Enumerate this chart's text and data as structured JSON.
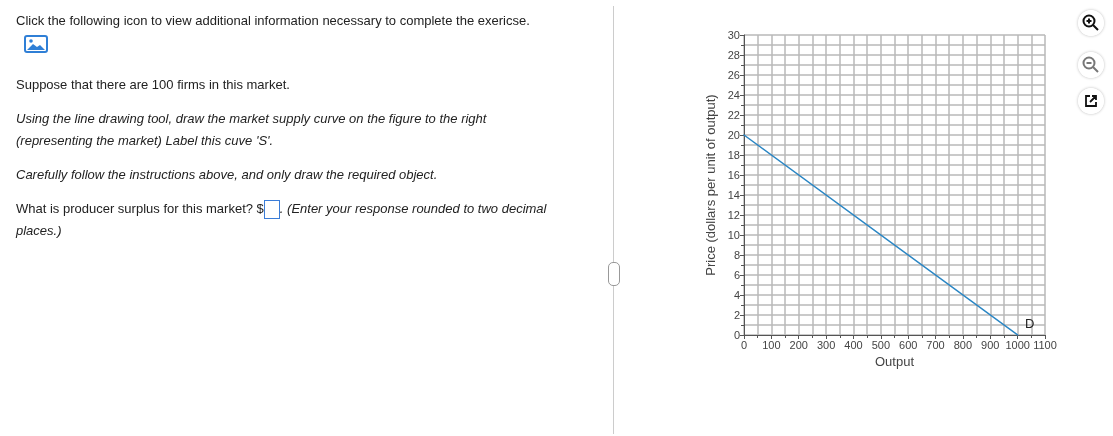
{
  "chart_data": {
    "type": "line",
    "xlabel": "Output",
    "ylabel": "Price (dollars per unit of output)",
    "annotations": [
      "Click the following icon to view additional information necessary to complete the exericse.",
      "Suppose that there are 100 firms in this market.",
      "Using the line drawing tool, draw the market supply curve on the figure to the right (representing the market)   Label this cuve 'S'.",
      "Carefully follow the instructions above, and only draw the required object.",
      "What is producer surplus for this market? $",
      ". (Enter your response rounded to two decimal places.)",
      {
        "text": "D",
        "x": 1000,
        "y": 0
      }
    ],
    "series": [
      {
        "x": [
          0,
          1000
        ],
        "values": [
          20,
          0
        ],
        "color": "#2a86c4"
      }
    ],
    "xlim": [
      0,
      1100
    ],
    "xticks": [
      0,
      100,
      200,
      300,
      400,
      500,
      600,
      700,
      800,
      900,
      1000,
      1100
    ],
    "ylim": [
      0,
      30
    ],
    "yticks": [
      0,
      2,
      4,
      6,
      8,
      10,
      12,
      14,
      16,
      18,
      20,
      22,
      24,
      26,
      28,
      30
    ],
    "grid": true,
    "marker": "none",
    "line_style": "solid"
  }
}
